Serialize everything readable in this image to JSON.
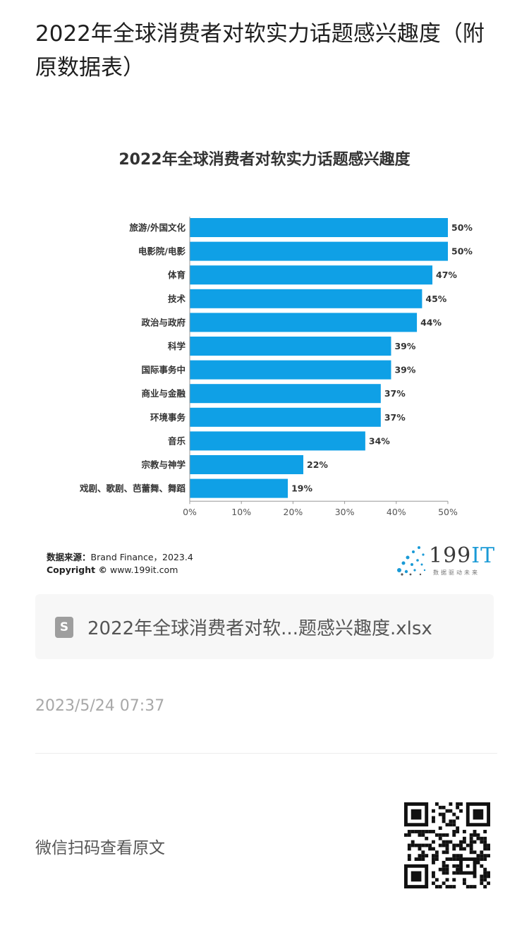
{
  "page": {
    "title": "2022年全球消费者对软实力话题感兴趣度（附原数据表）"
  },
  "chart_data": {
    "type": "bar",
    "orientation": "horizontal",
    "title": "2022年全球消费者对软实力话题感兴趣度",
    "categories": [
      "旅游/外国文化",
      "电影院/电影",
      "体育",
      "技术",
      "政治与政府",
      "科学",
      "国际事务中",
      "商业与金融",
      "环境事务",
      "音乐",
      "宗教与神学",
      "戏剧、歌剧、芭蕾舞、舞蹈"
    ],
    "values": [
      50,
      50,
      47,
      45,
      44,
      39,
      39,
      37,
      37,
      34,
      22,
      19
    ],
    "value_labels": [
      "50%",
      "50%",
      "47%",
      "45%",
      "44%",
      "39%",
      "39%",
      "37%",
      "37%",
      "34%",
      "22%",
      "19%"
    ],
    "xlim": [
      0,
      50
    ],
    "x_ticks": [
      "0%",
      "10%",
      "20%",
      "30%",
      "40%",
      "50%"
    ],
    "bar_color": "#0fa0e6",
    "grid": false
  },
  "source": {
    "label": "数据来源：",
    "text": "Brand Finance，2023.4",
    "copyright_label": "Copyright ©",
    "copyright_text": "www.199it.com"
  },
  "logo": {
    "num": "199",
    "it": "IT",
    "sub": "数据驱动未来"
  },
  "attachment": {
    "icon": "spreadsheet-file-icon",
    "icon_glyph": "S",
    "file_name": "2022年全球消费者对软...题感兴趣度.xlsx"
  },
  "meta": {
    "timestamp": "2023/5/24 07:37"
  },
  "footer": {
    "read_original": "微信扫码查看原文"
  }
}
